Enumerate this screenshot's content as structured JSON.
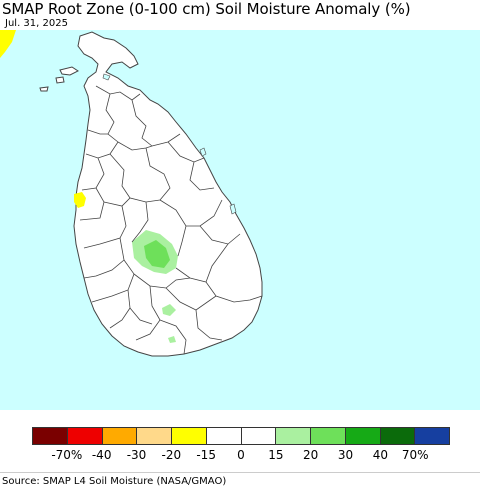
{
  "title": "SMAP Root Zone (0-100 cm) Soil Moisture Anomaly (%)",
  "date": "Jul. 31, 2025",
  "source": "Source: SMAP L4 Soil Moisture (NASA/GMAO)",
  "colors": {
    "ocean": "#ccffff",
    "land": "#ffffff",
    "boundary": "#444444",
    "wet_light": "#aaf0a0",
    "wet_medium": "#6ee05a",
    "dry_yellow": "#ffff00"
  },
  "legend": {
    "colors": [
      "#7a0000",
      "#ee0000",
      "#ffaa00",
      "#ffd98a",
      "#ffff00",
      "#ffffff",
      "#ffffff",
      "#aaf0a0",
      "#6ee05a",
      "#16aa16",
      "#0b6b0b",
      "#163fa0"
    ],
    "labels": [
      "-70%",
      "-40",
      "-30",
      "-20",
      "-15",
      "0",
      "15",
      "20",
      "30",
      "40",
      "70%"
    ]
  }
}
